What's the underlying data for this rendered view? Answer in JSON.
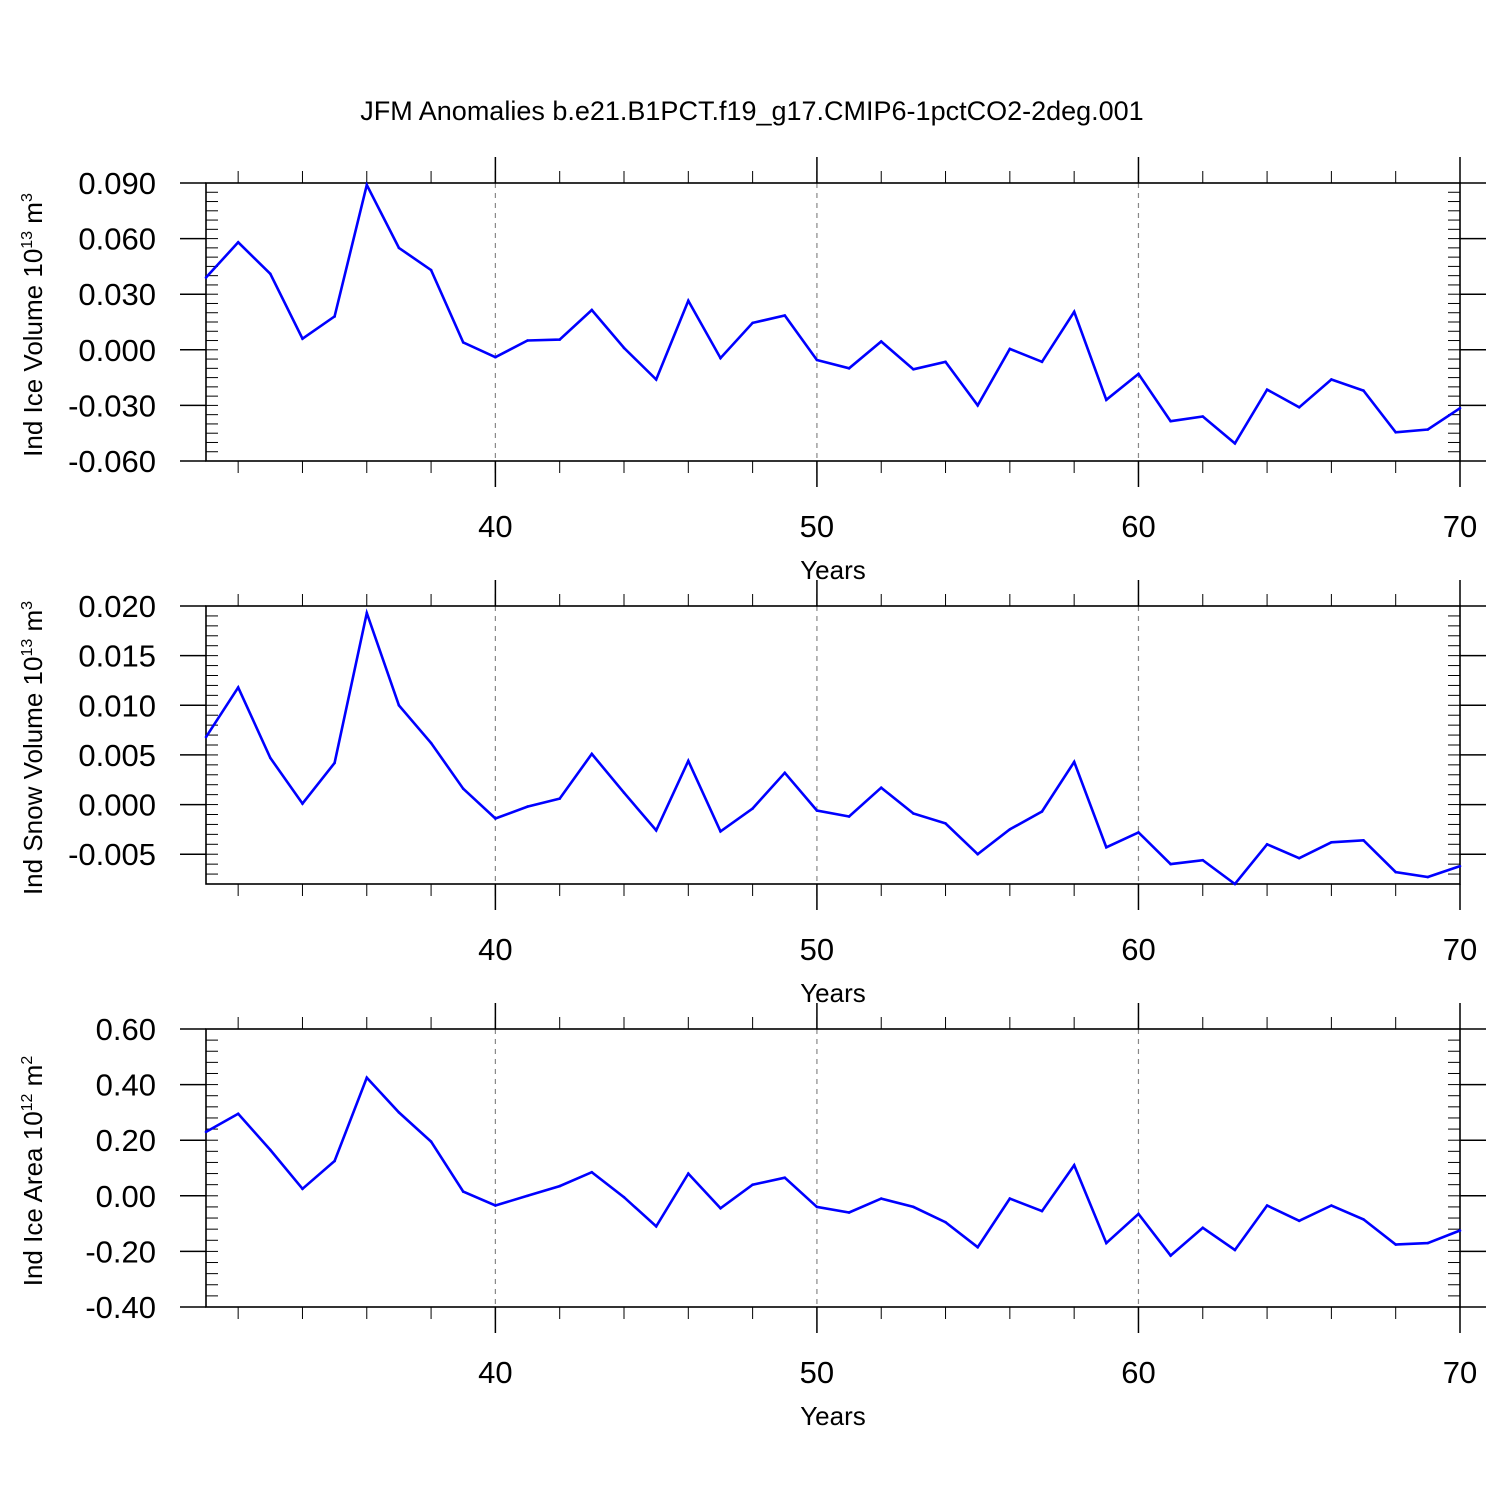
{
  "title": "JFM Anomalies b.e21.B1PCT.f19_g17.CMIP6-1pctCO2-2deg.001",
  "chart_data": [
    {
      "type": "line",
      "xlabel": "Years",
      "ylabel": {
        "text": "Ind Ice Volume 10",
        "exp": "13",
        "unit": " m",
        "unit_exp": "3"
      },
      "xlim": [
        31,
        70
      ],
      "ylim": [
        -0.06,
        0.09
      ],
      "yticks": [
        -0.06,
        -0.03,
        0.0,
        0.03,
        0.06,
        0.09
      ],
      "ytick_labels": [
        "-0.060",
        "-0.030",
        "0.000",
        "0.030",
        "0.060",
        "0.090"
      ],
      "yminor_step": 0.005,
      "xticks": [
        40,
        50,
        60,
        70
      ],
      "xtick_labels": [
        "40",
        "50",
        "60",
        "70"
      ],
      "xminor_step": 2,
      "grid": "dashed vertical at major x ticks",
      "color": "#0000ff",
      "x": [
        31,
        32,
        33,
        34,
        35,
        36,
        37,
        38,
        39,
        40,
        41,
        42,
        43,
        44,
        45,
        46,
        47,
        48,
        49,
        50,
        51,
        52,
        53,
        54,
        55,
        56,
        57,
        58,
        59,
        60,
        61,
        62,
        63,
        64,
        65,
        66,
        67,
        68,
        69,
        70
      ],
      "values": [
        0.039,
        0.058,
        0.041,
        0.006,
        0.018,
        0.089,
        0.055,
        0.043,
        0.004,
        -0.004,
        0.005,
        0.0055,
        0.0215,
        0.001,
        -0.016,
        0.0265,
        -0.0045,
        0.0145,
        0.0185,
        -0.0055,
        -0.01,
        0.0045,
        -0.0105,
        -0.0065,
        -0.03,
        0.0005,
        -0.0065,
        0.0205,
        -0.027,
        -0.013,
        -0.0385,
        -0.036,
        -0.0505,
        -0.0215,
        -0.031,
        -0.016,
        -0.022,
        -0.0445,
        -0.043,
        -0.0315
      ]
    },
    {
      "type": "line",
      "xlabel": "Years",
      "ylabel": {
        "text": "Ind Snow Volume 10",
        "exp": "13",
        "unit": " m",
        "unit_exp": "3"
      },
      "xlim": [
        31,
        70
      ],
      "ylim": [
        -0.008,
        0.02
      ],
      "yticks": [
        -0.005,
        0.0,
        0.005,
        0.01,
        0.015,
        0.02
      ],
      "ytick_labels": [
        "-0.005",
        "0.000",
        "0.005",
        "0.010",
        "0.015",
        "0.020"
      ],
      "yminor_step": 0.001,
      "xticks": [
        40,
        50,
        60,
        70
      ],
      "xtick_labels": [
        "40",
        "50",
        "60",
        "70"
      ],
      "xminor_step": 2,
      "grid": "dashed vertical at major x ticks",
      "color": "#0000ff",
      "x": [
        31,
        32,
        33,
        34,
        35,
        36,
        37,
        38,
        39,
        40,
        41,
        42,
        43,
        44,
        45,
        46,
        47,
        48,
        49,
        50,
        51,
        52,
        53,
        54,
        55,
        56,
        57,
        58,
        59,
        60,
        61,
        62,
        63,
        64,
        65,
        66,
        67,
        68,
        69,
        70
      ],
      "values": [
        0.0068,
        0.0118,
        0.0047,
        0.0001,
        0.0042,
        0.0193,
        0.01,
        0.0062,
        0.0016,
        -0.0014,
        -0.0002,
        0.0006,
        0.0051,
        0.0012,
        -0.0026,
        0.0044,
        -0.0027,
        -0.0004,
        0.0032,
        -0.0006,
        -0.0012,
        0.0017,
        -0.0009,
        -0.0019,
        -0.005,
        -0.0025,
        -0.0007,
        0.0043,
        -0.0043,
        -0.0028,
        -0.006,
        -0.0056,
        -0.008,
        -0.004,
        -0.0054,
        -0.0038,
        -0.0036,
        -0.0068,
        -0.0073,
        -0.0062
      ]
    },
    {
      "type": "line",
      "xlabel": "Years",
      "ylabel": {
        "text": "Ind Ice Area 10",
        "exp": "12",
        "unit": " m",
        "unit_exp": "2"
      },
      "xlim": [
        31,
        70
      ],
      "ylim": [
        -0.4,
        0.6
      ],
      "yticks": [
        -0.4,
        -0.2,
        0.0,
        0.2,
        0.4,
        0.6
      ],
      "ytick_labels": [
        "-0.40",
        "-0.20",
        "0.00",
        "0.20",
        "0.40",
        "0.60"
      ],
      "yminor_step": 0.04,
      "xticks": [
        40,
        50,
        60,
        70
      ],
      "xtick_labels": [
        "40",
        "50",
        "60",
        "70"
      ],
      "xminor_step": 2,
      "grid": "dashed vertical at major x ticks",
      "color": "#0000ff",
      "x": [
        31,
        32,
        33,
        34,
        35,
        36,
        37,
        38,
        39,
        40,
        41,
        42,
        43,
        44,
        45,
        46,
        47,
        48,
        49,
        50,
        51,
        52,
        53,
        54,
        55,
        56,
        57,
        58,
        59,
        60,
        61,
        62,
        63,
        64,
        65,
        66,
        67,
        68,
        69,
        70
      ],
      "values": [
        0.23,
        0.295,
        0.165,
        0.025,
        0.125,
        0.425,
        0.3,
        0.195,
        0.015,
        -0.035,
        0.0,
        0.035,
        0.085,
        -0.005,
        -0.11,
        0.08,
        -0.045,
        0.04,
        0.065,
        -0.04,
        -0.06,
        -0.01,
        -0.04,
        -0.095,
        -0.185,
        -0.01,
        -0.055,
        0.11,
        -0.17,
        -0.065,
        -0.215,
        -0.115,
        -0.195,
        -0.035,
        -0.09,
        -0.035,
        -0.085,
        -0.175,
        -0.17,
        -0.125
      ]
    }
  ]
}
